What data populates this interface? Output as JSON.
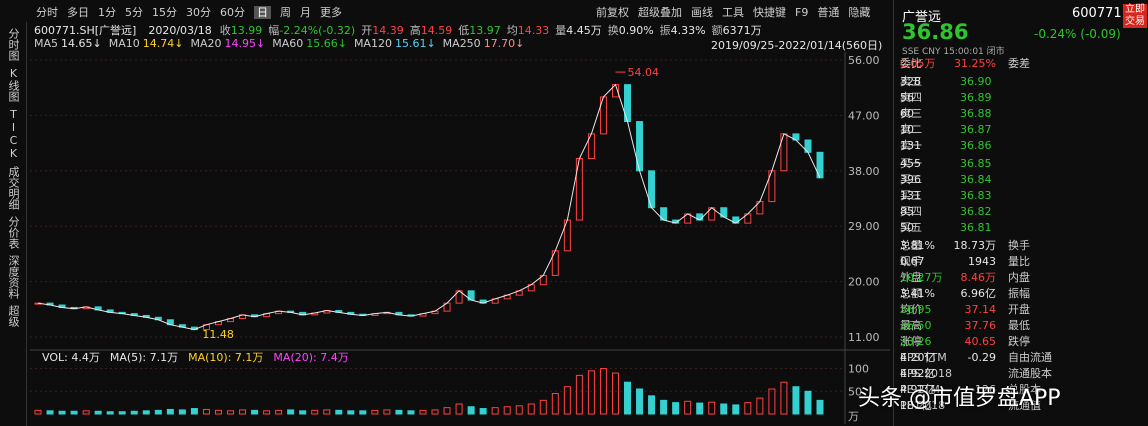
{
  "toolbar": {
    "left": [
      "分时",
      "多日",
      "1分",
      "5分",
      "15分",
      "30分",
      "60分",
      "日",
      "周",
      "月",
      "更多"
    ],
    "selected": "日",
    "right": [
      "前复权",
      "超级叠加",
      "画线",
      "工具",
      "快捷键",
      "F9",
      "普通",
      "隐藏"
    ]
  },
  "sidebar": [
    "分时图",
    "K线图",
    "TICK",
    "成交明细",
    "分价表",
    "深度资料",
    "超级"
  ],
  "info": {
    "symbol": "600771.SH[广誉远]",
    "date": "2020/03/18",
    "fields": [
      {
        "label": "收",
        "value": "13.99",
        "color": "#2ec52e"
      },
      {
        "label": "幅",
        "value": "-2.24%(-0.32)",
        "color": "#2ec52e"
      },
      {
        "label": "开",
        "value": "14.39",
        "color": "#ff4040"
      },
      {
        "label": "高",
        "value": "14.59",
        "color": "#ff4040"
      },
      {
        "label": "低",
        "value": "13.97",
        "color": "#2ec52e"
      },
      {
        "label": "均",
        "value": "14.33",
        "color": "#ff4040"
      },
      {
        "label": "量",
        "value": "4.45万",
        "color": "#e6e6e6"
      },
      {
        "label": "换",
        "value": "0.90%",
        "color": "#e6e6e6"
      },
      {
        "label": "振",
        "value": "4.33%",
        "color": "#e6e6e6"
      },
      {
        "label": "额",
        "value": "6371万",
        "color": "#e6e6e6"
      }
    ]
  },
  "ma": [
    {
      "label": "MA5",
      "value": "14.65↓",
      "color": "#e6e6e6"
    },
    {
      "label": "MA10",
      "value": "14.74↓",
      "color": "#ffd21f"
    },
    {
      "label": "MA20",
      "value": "14.95↓",
      "color": "#ff44ff"
    },
    {
      "label": "MA60",
      "value": "15.66↓",
      "color": "#27c427"
    },
    {
      "label": "MA120",
      "value": "15.61↓",
      "color": "#59d2f2"
    },
    {
      "label": "MA250",
      "value": "17.70↓",
      "color": "#ff8a8a"
    }
  ],
  "range": "2019/09/25-2022/01/14(560日)",
  "price_chart": {
    "ylim": [
      11,
      56
    ],
    "yticks": [
      {
        "value": 56,
        "label": "56.00"
      },
      {
        "value": 47,
        "label": "47.00"
      },
      {
        "value": 38,
        "label": "38.00"
      },
      {
        "value": 29,
        "label": "29.00"
      },
      {
        "value": 20,
        "label": "20.00"
      },
      {
        "value": 11,
        "label": "11.00"
      }
    ],
    "close": [
      16.5,
      16.2,
      15.8,
      15.6,
      15.9,
      15.4,
      15.0,
      14.8,
      14.5,
      14.2,
      13.8,
      13.0,
      12.6,
      12.2,
      13.0,
      13.5,
      14.0,
      14.6,
      14.3,
      14.8,
      15.2,
      15.0,
      14.6,
      14.9,
      15.3,
      15.0,
      14.7,
      14.5,
      14.8,
      15.0,
      14.6,
      14.4,
      14.8,
      15.2,
      16.5,
      18.5,
      17.0,
      16.5,
      17.2,
      17.8,
      18.5,
      19.5,
      21.0,
      25.0,
      30.0,
      40.0,
      44.0,
      50.0,
      52.0,
      46.0,
      38.0,
      32.0,
      30.0,
      29.5,
      31.0,
      30.0,
      32.0,
      30.5,
      29.5,
      31.0,
      33.0,
      38.0,
      44.0,
      43.0,
      41.0,
      36.86
    ],
    "high_label": 54.04,
    "low_label": 11.48,
    "up_color": "#ff4040",
    "down_color": "#35d0d0",
    "line_color": "#e8e8e8"
  },
  "volume_chart": {
    "legend": [
      {
        "label": "VOL: 4.4万",
        "color": "#e6e6e6"
      },
      {
        "label": "MA(5): 7.1万",
        "color": "#e6e6e6"
      },
      {
        "label": "MA(10): 7.1万",
        "color": "#ffd21f"
      },
      {
        "label": "MA(20): 7.4万",
        "color": "#ff44ff"
      }
    ],
    "ylim": [
      0,
      110
    ],
    "yticks": [
      100,
      50
    ],
    "unit": "万",
    "values": [
      8,
      7,
      6,
      6,
      7,
      6,
      5,
      5,
      6,
      7,
      8,
      10,
      9,
      12,
      10,
      8,
      7,
      9,
      8,
      7,
      8,
      9,
      7,
      8,
      9,
      8,
      7,
      7,
      8,
      9,
      8,
      7,
      8,
      9,
      14,
      22,
      16,
      12,
      14,
      16,
      18,
      22,
      30,
      45,
      60,
      85,
      95,
      100,
      90,
      70,
      55,
      40,
      30,
      25,
      28,
      24,
      26,
      22,
      20,
      25,
      35,
      55,
      70,
      60,
      50,
      30
    ]
  },
  "quote": {
    "name": "广誉远",
    "code": "600771",
    "trade_button": "立即交易",
    "price": "36.86",
    "change": "-0.24% (-0.09)",
    "status": "SSE CNY 15:00:01 闭市",
    "ratio": {
      "l1": "委比",
      "v1": "31.25%",
      "c1": "#ff4040",
      "l2": "委差",
      "v2": "0.05万",
      "c2": "#ff4040"
    },
    "sell": [
      {
        "label": "卖五",
        "price": "36.90",
        "volume": "328"
      },
      {
        "label": "卖四",
        "price": "36.89",
        "volume": "56"
      },
      {
        "label": "卖三",
        "price": "36.88",
        "volume": "60"
      },
      {
        "label": "卖二",
        "price": "36.87",
        "volume": "10"
      },
      {
        "label": "卖一",
        "price": "36.86",
        "volume": "131"
      }
    ],
    "buy": [
      {
        "label": "买一",
        "price": "36.85",
        "volume": "455"
      },
      {
        "label": "买二",
        "price": "36.84",
        "volume": "396"
      },
      {
        "label": "买三",
        "price": "36.83",
        "volume": "131"
      },
      {
        "label": "买四",
        "price": "36.82",
        "volume": "85"
      },
      {
        "label": "买五",
        "price": "36.81",
        "volume": "50"
      }
    ],
    "stats": [
      {
        "l1": "总量",
        "v1": "18.73万",
        "c1": "#e6e6e6",
        "l2": "换手",
        "v2": "3.81%",
        "c2": "#e6e6e6"
      },
      {
        "l1": "现手",
        "v1": "1943",
        "c1": "#e6e6e6",
        "l2": "量比",
        "v2": "0.67",
        "c2": "#e6e6e6"
      },
      {
        "l1": "外盘",
        "v1": "8.46万",
        "c1": "#ff4040",
        "l2": "内盘",
        "v2": "10.27万",
        "c2": "#2ec52e"
      },
      {
        "l1": "总额",
        "v1": "6.96亿",
        "c1": "#e6e6e6",
        "l2": "振幅",
        "v2": "3.41%",
        "c2": "#e6e6e6"
      },
      {
        "l1": "均价",
        "v1": "37.14",
        "c1": "#ff4040",
        "l2": "开盘",
        "v2": "36.95",
        "c2": "#2ec52e"
      },
      {
        "l1": "最高",
        "v1": "37.76",
        "c1": "#ff4040",
        "l2": "最低",
        "v2": "36.50",
        "c2": "#2ec52e"
      },
      {
        "l1": "涨停",
        "v1": "40.65",
        "c1": "#ff4040",
        "l2": "跌停",
        "v2": "33.26",
        "c2": "#2ec52e"
      },
      {
        "l1": "EPS TTM",
        "v1": "-0.29",
        "c1": "#e6e6e6",
        "l2": "自由流通",
        "v2": "4.20亿",
        "c2": "#e6e6e6"
      },
      {
        "l1": "EPS 2018",
        "v1": "",
        "c1": "#e6e6e6",
        "l2": "流通股本",
        "v2": "4.92亿",
        "c2": "#e6e6e6"
      },
      {
        "l1": "PE TTM",
        "v1": "-126",
        "c1": "#e6e6e6",
        "l2": "总股本",
        "v2": "4.92亿",
        "c2": "#e6e6e6"
      },
      {
        "l1": "PE 2018",
        "v1": "",
        "c1": "#e6e6e6",
        "l2": "流通值",
        "v2": "181亿",
        "c2": "#e6e6e6"
      }
    ]
  },
  "watermark": "头条 @市值罗盘APP"
}
